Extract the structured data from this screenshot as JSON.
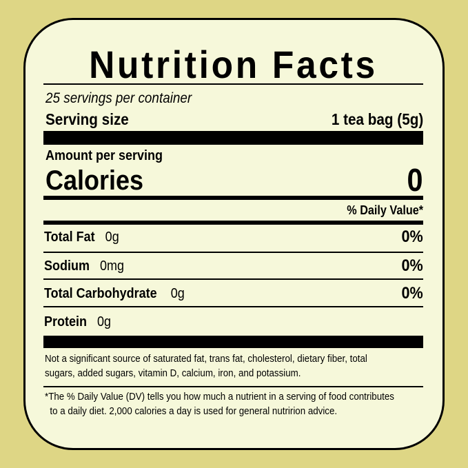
{
  "title": "Nutrition Facts",
  "servings_per_container": "25 servings per container",
  "serving_size": {
    "label": "Serving size",
    "value": "1 tea bag (5g)"
  },
  "amount_per_serving": "Amount per serving",
  "calories": {
    "label": "Calories",
    "value": "0"
  },
  "daily_value_header": "% Daily Value*",
  "nutrients": [
    {
      "name": "Total Fat",
      "amount": "0g",
      "dv": "0%"
    },
    {
      "name": "Sodium",
      "amount": "0mg",
      "dv": "0%"
    },
    {
      "name": "Total Carbohydrate",
      "amount": "0g",
      "dv": "0%"
    },
    {
      "name": "Protein",
      "amount": "0g",
      "dv": ""
    }
  ],
  "not_significant": [
    "Not a significant source of saturated fat, trans fat, cholesterol, dietary fiber, total",
    "sugars, added sugars, vitamin D, calcium, iron, and potassium."
  ],
  "footnote": [
    "The % Daily Value (DV) tells you how much a nutrient in a serving of food contributes",
    "to a daily diet. 2,000 calories a day is used for general nutririon advice."
  ],
  "footnote_mark": "*",
  "colors": {
    "background": "#ded685",
    "label": "#f6f8da",
    "ink": "#000000"
  }
}
